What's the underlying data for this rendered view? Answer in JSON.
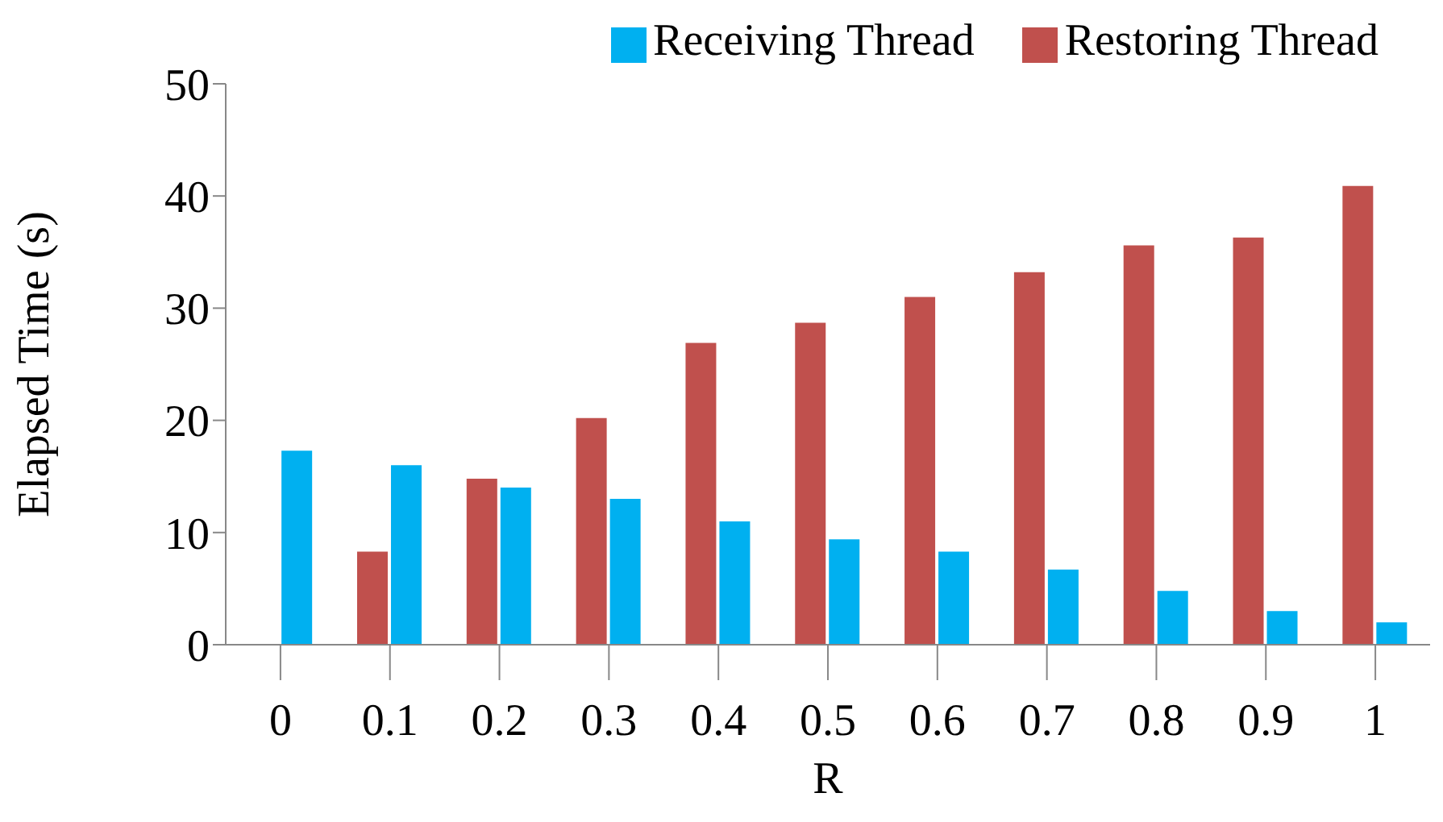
{
  "chart_data": {
    "type": "bar",
    "xlabel": "R",
    "ylabel": "Elapsed Time (s)",
    "categories": [
      "0",
      "0.1",
      "0.2",
      "0.3",
      "0.4",
      "0.5",
      "0.6",
      "0.7",
      "0.8",
      "0.9",
      "1"
    ],
    "series": [
      {
        "name": "Restoring Thread",
        "color": "#c0504d",
        "values": [
          0,
          8.3,
          14.8,
          20.2,
          26.9,
          28.7,
          31.0,
          33.2,
          35.6,
          36.3,
          40.9
        ]
      },
      {
        "name": "Receiving Thread",
        "color": "#00b0f0",
        "values": [
          17.3,
          16.0,
          14.0,
          13.0,
          11.0,
          9.4,
          8.3,
          6.7,
          4.8,
          3.0,
          2.0
        ]
      }
    ],
    "ylim": [
      0,
      50
    ],
    "yticks": [
      0,
      10,
      20,
      30,
      40,
      50
    ],
    "grid": false,
    "legend": "top right"
  }
}
